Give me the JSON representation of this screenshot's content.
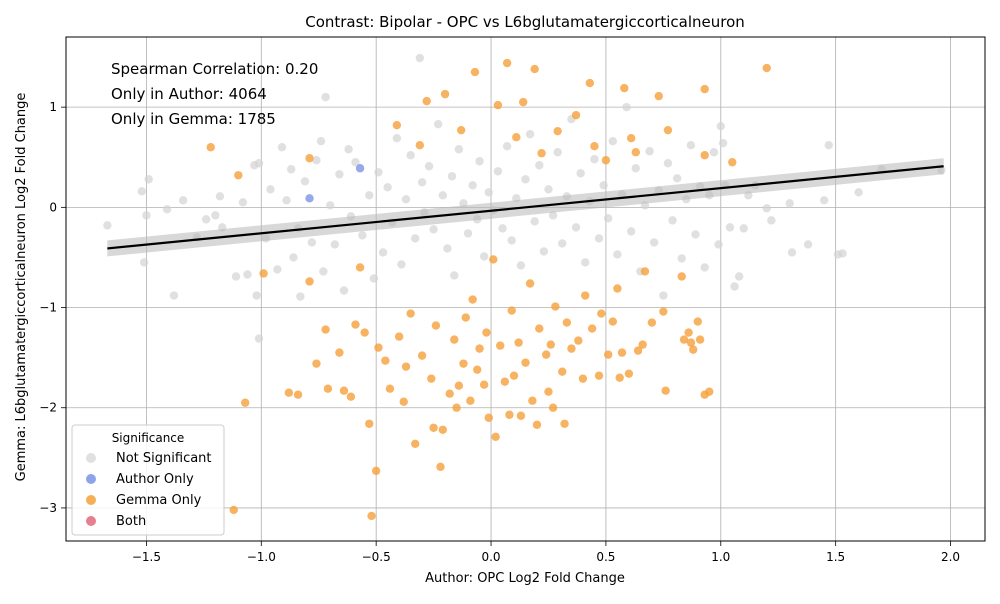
{
  "chart_data": {
    "type": "scatter",
    "title": "Contrast: Bipolar - OPC vs L6bglutamatergiccorticalneuron",
    "xlabel": "Author: OPC Log2 Fold Change",
    "ylabel": "Gemma: L6bglutamatergiccorticalneuron Log2 Fold Change",
    "xlim": [
      -1.85,
      2.15
    ],
    "ylim": [
      -3.33,
      1.7
    ],
    "xticks": [
      -1.5,
      -1.0,
      -0.5,
      0.0,
      0.5,
      1.0,
      1.5,
      2.0
    ],
    "xtick_labels": [
      "−1.5",
      "−1.0",
      "−0.5",
      "0.0",
      "0.5",
      "1.0",
      "1.5",
      "2.0"
    ],
    "yticks": [
      -3,
      -2,
      -1,
      0,
      1
    ],
    "ytick_labels": [
      "−3",
      "−2",
      "−1",
      "0",
      "1"
    ],
    "grid": true,
    "annotations": [
      "Spearman Correlation: 0.20",
      "Only in Author: 4064",
      "Only in Gemma: 1785"
    ],
    "legend": {
      "title": "Significance",
      "placement": "lower-left",
      "entries": [
        {
          "label": "Not Significant",
          "color": "#d3d3d3"
        },
        {
          "label": "Author Only",
          "color": "#7b93e6"
        },
        {
          "label": "Gemma Only",
          "color": "#f5a03a"
        },
        {
          "label": "Both",
          "color": "#e06a7a"
        }
      ]
    },
    "regression_line": {
      "x": [
        -1.67,
        1.97
      ],
      "y": [
        -0.41,
        0.41
      ],
      "color": "#000000"
    },
    "series": [
      {
        "name": "Not Significant",
        "color": "#d3d3d3",
        "points": [
          [
            -1.67,
            -0.18
          ],
          [
            -1.52,
            0.16
          ],
          [
            -1.49,
            0.28
          ],
          [
            -1.5,
            -0.08
          ],
          [
            -1.51,
            -0.55
          ],
          [
            -1.41,
            -0.02
          ],
          [
            -1.38,
            -0.88
          ],
          [
            -1.34,
            0.07
          ],
          [
            -1.28,
            -0.3
          ],
          [
            -1.24,
            -0.12
          ],
          [
            -1.18,
            0.11
          ],
          [
            -1.2,
            -0.08
          ],
          [
            -1.17,
            -0.2
          ],
          [
            -1.11,
            -0.69
          ],
          [
            -1.08,
            0.05
          ],
          [
            -1.06,
            -0.67
          ],
          [
            -1.03,
            0.42
          ],
          [
            -1.01,
            0.44
          ],
          [
            -1.02,
            -0.88
          ],
          [
            -1.01,
            -1.31
          ],
          [
            -0.98,
            -0.31
          ],
          [
            -0.96,
            0.18
          ],
          [
            -0.93,
            -0.62
          ],
          [
            -0.91,
            0.6
          ],
          [
            -0.89,
            0.07
          ],
          [
            -0.87,
            0.38
          ],
          [
            -0.86,
            -0.5
          ],
          [
            -0.84,
            -0.21
          ],
          [
            -0.83,
            -0.89
          ],
          [
            -0.81,
            0.26
          ],
          [
            -0.78,
            -0.35
          ],
          [
            -0.76,
            0.47
          ],
          [
            -0.74,
            0.66
          ],
          [
            -0.73,
            -0.64
          ],
          [
            -0.72,
            1.1
          ],
          [
            -0.7,
            0.02
          ],
          [
            -0.68,
            -0.37
          ],
          [
            -0.66,
            0.33
          ],
          [
            -0.64,
            -0.83
          ],
          [
            -0.62,
            0.58
          ],
          [
            -0.61,
            -0.09
          ],
          [
            -0.59,
            0.45
          ],
          [
            -0.56,
            -0.28
          ],
          [
            -0.53,
            0.12
          ],
          [
            -0.51,
            -0.71
          ],
          [
            -0.49,
            0.35
          ],
          [
            -0.47,
            -0.45
          ],
          [
            -0.45,
            0.2
          ],
          [
            -0.43,
            -0.15
          ],
          [
            -0.41,
            0.69
          ],
          [
            -0.39,
            -0.57
          ],
          [
            -0.37,
            0.08
          ],
          [
            -0.35,
            0.52
          ],
          [
            -0.33,
            -0.31
          ],
          [
            -0.31,
            1.49
          ],
          [
            -0.3,
            0.25
          ],
          [
            -0.29,
            -0.05
          ],
          [
            -0.27,
            0.41
          ],
          [
            -0.25,
            -0.22
          ],
          [
            -0.23,
            0.83
          ],
          [
            -0.21,
            0.12
          ],
          [
            -0.19,
            -0.41
          ],
          [
            -0.17,
            0.31
          ],
          [
            -0.16,
            -0.68
          ],
          [
            -0.14,
            0.58
          ],
          [
            -0.12,
            0.04
          ],
          [
            -0.1,
            -0.26
          ],
          [
            -0.08,
            0.22
          ],
          [
            -0.06,
            -0.12
          ],
          [
            -0.05,
            0.46
          ],
          [
            -0.03,
            -0.49
          ],
          [
            -0.01,
            0.15
          ],
          [
            0.01,
            -0.03
          ],
          [
            0.03,
            0.36
          ],
          [
            0.05,
            -0.21
          ],
          [
            0.07,
            0.61
          ],
          [
            0.09,
            -0.33
          ],
          [
            0.11,
            0.09
          ],
          [
            0.13,
            -0.58
          ],
          [
            0.15,
            0.28
          ],
          [
            0.17,
            0.73
          ],
          [
            0.19,
            -0.14
          ],
          [
            0.21,
            0.42
          ],
          [
            0.23,
            -0.44
          ],
          [
            0.25,
            0.18
          ],
          [
            0.27,
            -0.08
          ],
          [
            0.29,
            0.55
          ],
          [
            0.31,
            -0.36
          ],
          [
            0.33,
            0.11
          ],
          [
            0.35,
            0.88
          ],
          [
            0.37,
            -0.2
          ],
          [
            0.39,
            0.34
          ],
          [
            0.41,
            -0.55
          ],
          [
            0.43,
            0.06
          ],
          [
            0.45,
            0.48
          ],
          [
            0.47,
            -0.31
          ],
          [
            0.49,
            0.22
          ],
          [
            0.51,
            -0.11
          ],
          [
            0.53,
            0.66
          ],
          [
            0.55,
            -0.47
          ],
          [
            0.57,
            0.13
          ],
          [
            0.59,
            1.0
          ],
          [
            0.61,
            -0.24
          ],
          [
            0.63,
            0.39
          ],
          [
            0.65,
            -0.64
          ],
          [
            0.67,
            0.02
          ],
          [
            0.69,
            0.56
          ],
          [
            0.71,
            -0.35
          ],
          [
            0.73,
            0.17
          ],
          [
            0.75,
            -0.88
          ],
          [
            0.77,
            0.44
          ],
          [
            0.79,
            -0.13
          ],
          [
            0.81,
            0.29
          ],
          [
            0.83,
            -0.51
          ],
          [
            0.85,
            0.08
          ],
          [
            0.87,
            0.62
          ],
          [
            0.89,
            -0.27
          ],
          [
            0.91,
            0.21
          ],
          [
            0.93,
            -0.6
          ],
          [
            0.95,
            0.12
          ],
          [
            0.97,
            0.55
          ],
          [
            0.99,
            -0.37
          ],
          [
            1.0,
            0.81
          ],
          [
            1.01,
            0.64
          ],
          [
            1.02,
            0.22
          ],
          [
            1.04,
            -0.2
          ],
          [
            1.06,
            -0.79
          ],
          [
            1.08,
            -0.69
          ],
          [
            1.1,
            -0.21
          ],
          [
            1.12,
            0.12
          ],
          [
            1.15,
            0.22
          ],
          [
            1.2,
            -0.01
          ],
          [
            1.22,
            -0.13
          ],
          [
            1.3,
            0.04
          ],
          [
            1.31,
            -0.45
          ],
          [
            1.38,
            -0.37
          ],
          [
            1.45,
            0.07
          ],
          [
            1.47,
            0.62
          ],
          [
            1.51,
            -0.47
          ],
          [
            1.53,
            -0.46
          ],
          [
            1.6,
            0.15
          ],
          [
            1.7,
            0.38
          ],
          [
            1.96,
            0.37
          ]
        ]
      },
      {
        "name": "Author Only",
        "color": "#7b93e6",
        "points": [
          [
            -0.79,
            0.09
          ],
          [
            -0.57,
            0.39
          ]
        ]
      },
      {
        "name": "Gemma Only",
        "color": "#f5a03a",
        "points": [
          [
            -1.22,
            0.6
          ],
          [
            -1.1,
            0.32
          ],
          [
            -1.12,
            -3.02
          ],
          [
            -1.07,
            -1.95
          ],
          [
            -0.99,
            -0.66
          ],
          [
            -0.88,
            -1.85
          ],
          [
            -0.84,
            -1.87
          ],
          [
            -0.79,
            0.49
          ],
          [
            -0.79,
            -0.74
          ],
          [
            -0.76,
            -1.56
          ],
          [
            -0.72,
            -1.22
          ],
          [
            -0.71,
            -1.81
          ],
          [
            -0.66,
            -1.45
          ],
          [
            -0.64,
            -1.83
          ],
          [
            -0.61,
            -1.89
          ],
          [
            -0.59,
            -1.17
          ],
          [
            -0.57,
            -0.6
          ],
          [
            -0.55,
            -1.25
          ],
          [
            -0.53,
            -2.16
          ],
          [
            -0.52,
            -3.08
          ],
          [
            -0.5,
            -2.63
          ],
          [
            -0.49,
            -1.4
          ],
          [
            -0.46,
            -1.53
          ],
          [
            -0.44,
            -1.81
          ],
          [
            -0.41,
            0.82
          ],
          [
            -0.4,
            -1.29
          ],
          [
            -0.38,
            -1.94
          ],
          [
            -0.37,
            -1.59
          ],
          [
            -0.35,
            -1.06
          ],
          [
            -0.33,
            -2.36
          ],
          [
            -0.31,
            0.62
          ],
          [
            -0.3,
            -1.48
          ],
          [
            -0.28,
            1.06
          ],
          [
            -0.26,
            -1.71
          ],
          [
            -0.25,
            -2.2
          ],
          [
            -0.24,
            -1.18
          ],
          [
            -0.22,
            -2.59
          ],
          [
            -0.21,
            -2.22
          ],
          [
            -0.2,
            1.13
          ],
          [
            -0.18,
            -1.86
          ],
          [
            -0.16,
            -1.32
          ],
          [
            -0.15,
            -2.0
          ],
          [
            -0.14,
            -1.78
          ],
          [
            -0.13,
            0.77
          ],
          [
            -0.12,
            -1.56
          ],
          [
            -0.11,
            -1.1
          ],
          [
            -0.09,
            -1.93
          ],
          [
            -0.08,
            -0.92
          ],
          [
            -0.07,
            1.35
          ],
          [
            -0.06,
            -1.62
          ],
          [
            -0.05,
            -1.41
          ],
          [
            -0.03,
            -1.77
          ],
          [
            -0.02,
            -1.25
          ],
          [
            -0.01,
            -2.1
          ],
          [
            0.01,
            -0.52
          ],
          [
            0.02,
            -2.29
          ],
          [
            0.03,
            1.02
          ],
          [
            0.04,
            -1.38
          ],
          [
            0.06,
            -1.74
          ],
          [
            0.07,
            1.44
          ],
          [
            0.08,
            -2.07
          ],
          [
            0.09,
            -1.03
          ],
          [
            0.1,
            -1.68
          ],
          [
            0.11,
            0.7
          ],
          [
            0.12,
            -1.35
          ],
          [
            0.13,
            -2.08
          ],
          [
            0.14,
            1.05
          ],
          [
            0.15,
            -1.55
          ],
          [
            0.17,
            -0.76
          ],
          [
            0.18,
            -1.93
          ],
          [
            0.19,
            1.38
          ],
          [
            0.2,
            -2.17
          ],
          [
            0.21,
            -1.21
          ],
          [
            0.22,
            0.54
          ],
          [
            0.24,
            -1.47
          ],
          [
            0.25,
            -1.84
          ],
          [
            0.26,
            -1.37
          ],
          [
            0.27,
            -2.0
          ],
          [
            0.28,
            -0.99
          ],
          [
            0.29,
            0.76
          ],
          [
            0.31,
            -1.64
          ],
          [
            0.32,
            -2.16
          ],
          [
            0.33,
            -1.15
          ],
          [
            0.35,
            -1.41
          ],
          [
            0.37,
            0.92
          ],
          [
            0.38,
            -1.33
          ],
          [
            0.4,
            -1.71
          ],
          [
            0.41,
            -0.88
          ],
          [
            0.43,
            1.24
          ],
          [
            0.44,
            -1.21
          ],
          [
            0.45,
            0.61
          ],
          [
            0.47,
            -1.68
          ],
          [
            0.48,
            -1.06
          ],
          [
            0.5,
            0.47
          ],
          [
            0.51,
            -1.47
          ],
          [
            0.53,
            -1.14
          ],
          [
            0.55,
            -0.81
          ],
          [
            0.56,
            -1.7
          ],
          [
            0.57,
            -1.45
          ],
          [
            0.58,
            1.19
          ],
          [
            0.6,
            -1.66
          ],
          [
            0.61,
            0.69
          ],
          [
            0.63,
            0.55
          ],
          [
            0.64,
            -1.43
          ],
          [
            0.66,
            -1.37
          ],
          [
            0.67,
            -0.64
          ],
          [
            0.7,
            -1.15
          ],
          [
            0.73,
            1.11
          ],
          [
            0.75,
            -1.04
          ],
          [
            0.76,
            -1.83
          ],
          [
            0.77,
            0.77
          ],
          [
            0.83,
            -0.69
          ],
          [
            0.84,
            -1.32
          ],
          [
            0.86,
            -1.25
          ],
          [
            0.87,
            -1.35
          ],
          [
            0.88,
            -1.42
          ],
          [
            0.9,
            -1.14
          ],
          [
            0.91,
            -1.32
          ],
          [
            0.93,
            1.18
          ],
          [
            0.93,
            0.52
          ],
          [
            0.93,
            -1.87
          ],
          [
            0.95,
            -1.84
          ],
          [
            1.05,
            0.45
          ],
          [
            1.2,
            1.39
          ]
        ]
      },
      {
        "name": "Both",
        "color": "#e06a7a",
        "points": []
      }
    ]
  }
}
